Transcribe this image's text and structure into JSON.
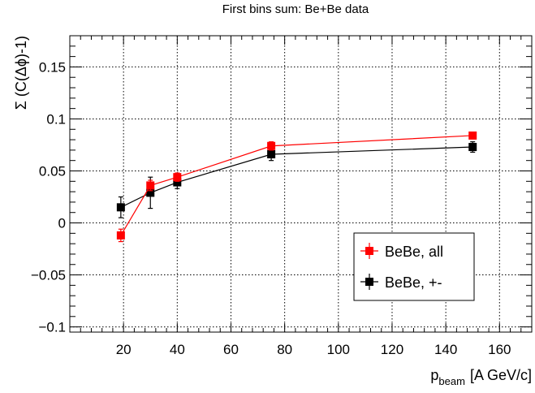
{
  "chart_data": {
    "type": "scatter",
    "title": "First bins sum: Be+Be data",
    "xlabel": "p_beam [A GeV/c]",
    "xlabel_main": "p",
    "xlabel_sub": "beam",
    "xlabel_unit": "[A GeV/c]",
    "ylabel": "Σ (C(Δϕ)-1)",
    "xlim": [
      0,
      172
    ],
    "ylim": [
      -0.105,
      0.18
    ],
    "x_ticks": [
      20,
      40,
      60,
      80,
      100,
      120,
      140,
      160
    ],
    "y_ticks": [
      -0.1,
      -0.05,
      0,
      0.05,
      0.1,
      0.15
    ],
    "y_tick_labels": [
      "−0.1",
      "−0.05",
      "0",
      "0.05",
      "0.1",
      "0.15"
    ],
    "grid": true,
    "legend_position": "bottom-right",
    "series": [
      {
        "name": "BeBe, all",
        "color": "#ff0000",
        "points": [
          {
            "x": 19,
            "y": -0.012,
            "err": 0.006
          },
          {
            "x": 30,
            "y": 0.036,
            "err": 0.005
          },
          {
            "x": 40,
            "y": 0.044,
            "err": 0.004
          },
          {
            "x": 75,
            "y": 0.074,
            "err": 0.004
          },
          {
            "x": 150,
            "y": 0.084,
            "err": 0.003
          }
        ]
      },
      {
        "name": "BeBe, +-",
        "color": "#000000",
        "points": [
          {
            "x": 19,
            "y": 0.015,
            "err": 0.01
          },
          {
            "x": 30,
            "y": 0.029,
            "err": 0.015
          },
          {
            "x": 40,
            "y": 0.039,
            "err": 0.006
          },
          {
            "x": 75,
            "y": 0.066,
            "err": 0.006
          },
          {
            "x": 150,
            "y": 0.073,
            "err": 0.005
          }
        ]
      }
    ]
  }
}
